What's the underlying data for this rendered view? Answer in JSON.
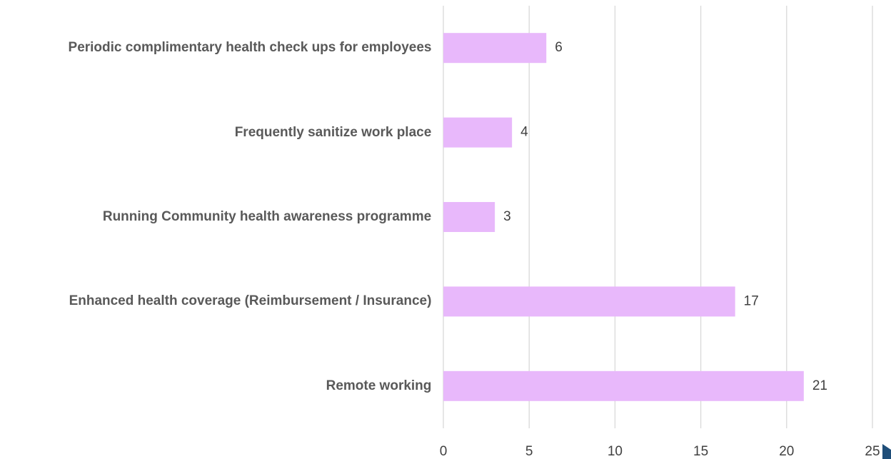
{
  "chart_data": {
    "type": "bar",
    "orientation": "horizontal",
    "categories": [
      "Periodic complimentary health check ups for employees",
      "Frequently sanitize work place",
      "Running Community health awareness programme",
      "Enhanced health coverage (Reimbursement / Insurance)",
      "Remote working"
    ],
    "values": [
      6,
      4,
      3,
      17,
      21
    ],
    "color": "#e8b8fb",
    "xlim": [
      0,
      25
    ],
    "xticks": [
      0,
      5,
      10,
      15,
      20,
      25
    ],
    "grid": true
  }
}
